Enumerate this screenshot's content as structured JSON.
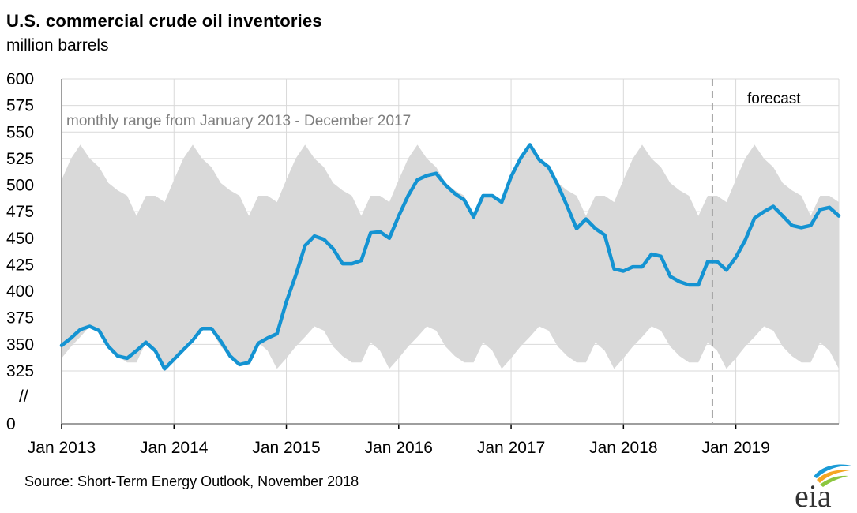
{
  "header": {
    "title": "U.S. commercial crude oil inventories",
    "subtitle": "million barrels"
  },
  "annotations": {
    "range_label": "monthly range from January 2013 - December 2017",
    "forecast_label": "forecast",
    "axis_break": "//"
  },
  "source": "Source: Short-Term Energy Outlook, November 2018",
  "logo_text": "eia",
  "colors": {
    "line": "#1493d2",
    "band": "#d9d9d9",
    "grid": "#d9d9d9",
    "forecast_divider": "#a6a6a6"
  },
  "chart_data": {
    "type": "line",
    "title": "U.S. commercial crude oil inventories",
    "ylabel": "million barrels",
    "xlabel": "",
    "ylim": [
      325,
      600
    ],
    "y_ticks": [
      0,
      325,
      350,
      375,
      400,
      425,
      450,
      475,
      500,
      525,
      550,
      575,
      600
    ],
    "y_axis_break": true,
    "x_tick_labels": [
      "Jan 2013",
      "Jan 2014",
      "Jan 2015",
      "Jan 2016",
      "Jan 2017",
      "Jan 2018",
      "Jan 2019"
    ],
    "x_range": [
      "2013-01",
      "2019-12"
    ],
    "forecast_start": "2018-11",
    "grid": true,
    "series": [
      {
        "kind": "line",
        "start": "2013-01",
        "frequency": "monthly",
        "values": [
          349,
          356,
          364,
          367,
          363,
          348,
          339,
          337,
          344,
          352,
          344,
          327,
          336,
          345,
          354,
          365,
          365,
          353,
          339,
          331,
          333,
          351,
          356,
          360,
          390,
          415,
          443,
          452,
          449,
          440,
          426,
          426,
          429,
          455,
          456,
          450,
          471,
          490,
          505,
          509,
          511,
          500,
          492,
          486,
          470,
          490,
          490,
          484,
          508,
          525,
          538,
          524,
          517,
          500,
          480,
          459,
          468,
          459,
          453,
          421,
          419,
          423,
          423,
          435,
          433,
          414,
          409,
          406,
          406,
          428,
          428,
          420,
          432,
          448,
          469,
          475,
          480,
          471,
          462,
          460,
          462,
          477,
          479,
          471
        ]
      },
      {
        "kind": "range",
        "name": "monthly range from January 2013 - December 2017",
        "start": "2013-01",
        "frequency": "monthly",
        "upper": [
          505,
          525,
          538,
          525,
          517,
          502,
          495,
          490,
          471,
          490,
          490,
          484
        ],
        "lower": [
          337,
          348,
          357,
          367,
          363,
          348,
          339,
          333,
          333,
          352,
          344,
          327
        ]
      }
    ]
  }
}
